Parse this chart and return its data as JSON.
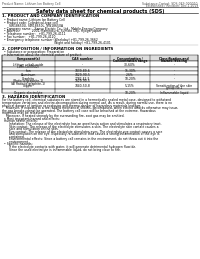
{
  "bg_color": "#ffffff",
  "header_left": "Product Name: Lithium Ion Battery Cell",
  "header_right_line1": "Substance Control: SDS-049-000010",
  "header_right_line2": "Established / Revision: Dec.1.2019",
  "title": "Safety data sheet for chemical products (SDS)",
  "section1_title": "1. PRODUCT AND COMPANY IDENTIFICATION",
  "section1_lines": [
    "  • Product name: Lithium Ion Battery Cell",
    "  • Product code: Cylindrical-type cell",
    "       SW18650U, SW18650L, SW18650A",
    "  • Company name:   Sanyo Electric Co., Ltd., Mobile Energy Company",
    "  • Address:            2001, Kamitokura, Sumoto City, Hyogo, Japan",
    "  • Telephone number:   +81-799-26-4111",
    "  • Fax number:   +81-799-26-4120",
    "  • Emergency telephone number (Weekday) +81-799-26-3662",
    "                                                    (Night and holiday) +81-799-26-4101"
  ],
  "section2_title": "2. COMPOSITION / INFORMATION ON INGREDIENTS",
  "section2_intro": "  • Substance or preparation: Preparation",
  "section2_sub": "  • Information about the chemical nature of product:",
  "table_headers": [
    "Component(s)",
    "CAS number",
    "Concentration /\nConcentration range",
    "Classification and\nhazard labeling"
  ],
  "table_col2": "Chemical name",
  "table_rows": [
    [
      "Lithium cobalt oxide\n(LiMn-Co(III)O2)",
      "-",
      "30-60%",
      "-"
    ],
    [
      "Iron",
      "7439-89-6",
      "15-30%",
      "-"
    ],
    [
      "Aluminum",
      "7429-90-5",
      "2-6%",
      "-"
    ],
    [
      "Graphite\n(Ratio to graphite-1)\n(AI Ratio to graphite-1)",
      "7782-42-5\n7429-90-5",
      "10-20%",
      "-"
    ],
    [
      "Copper",
      "7440-50-8",
      "5-15%",
      "Sensitization of the skin\ngroup No.2"
    ],
    [
      "Organic electrolyte",
      "-",
      "10-20%",
      "Inflammable liquid"
    ]
  ],
  "section3_title": "3. HAZARDS IDENTIFICATION",
  "section3_para1": "For the battery cell, chemical substances are stored in a hermetically sealed metal case, designed to withstand\ntemperature variations and electro-decomposition during normal use. As a result, during normal use, there is no\nphysical danger of ignition or explosion and thermo-danger of hazardous materials leakage.\n    However, if exposed to a fire, added mechanical shocks, decomposed, when electro attacks otherwise may issue,\nthe gas breaks cannot be operated. The battery cell case will be breached at the extreme. Hazardous\nmaterials may be released.\n    Moreover, if heated strongly by the surrounding fire, soot gas may be emitted.",
  "section3_bullet1": "  • Most important hazard and effects:",
  "section3_sub1": "Human health effects:",
  "section3_sub1_lines": [
    "       Inhalation: The release of the electrolyte has an anesthesia action and stimulates a respiratory tract.",
    "       Skin contact: The release of the electrolyte stimulates a skin. The electrolyte skin contact causes a",
    "       sore and stimulation on the skin.",
    "       Eye contact: The release of the electrolyte stimulates eyes. The electrolyte eye contact causes a sore",
    "       and stimulation on the eye. Especially, a substance that causes a strong inflammation of the eye is",
    "       contained.",
    "       Environmental effects: Since a battery cell remains in the environment, do not throw out it into the",
    "       environment."
  ],
  "section3_bullet2": "  • Specific hazards:",
  "section3_sub2_lines": [
    "       If the electrolyte contacts with water, it will generate detrimental hydrogen fluoride.",
    "       Since the used electrolyte is inflammable liquid, do not bring close to fire."
  ]
}
